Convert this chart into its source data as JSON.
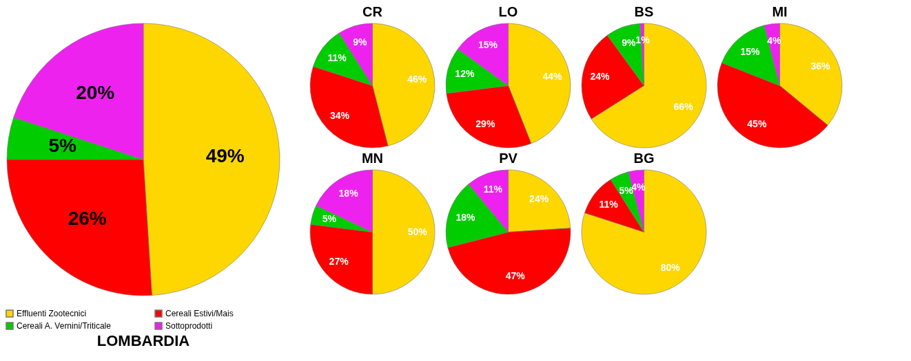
{
  "chart_data": [
    {
      "type": "pie",
      "title": "LOMBARDIA",
      "categories": [
        "Effluenti Zootecnici",
        "Cereali Estivi/Mais",
        "Cereali A. Vernini/Triticale",
        "Sottoprodotti"
      ],
      "values": [
        49,
        26,
        5,
        20
      ],
      "value_labels": [
        "49%",
        "26%",
        "5%",
        "20%"
      ],
      "colors": [
        "#ffd700",
        "#ff0000",
        "#00cc00",
        "#ee22ee"
      ],
      "legend": "bottom"
    },
    {
      "type": "pie",
      "title": "CR",
      "categories": [
        null,
        null,
        null,
        null
      ],
      "values": [
        46,
        34,
        11,
        9
      ],
      "value_labels": [
        "46%",
        "34%",
        "11%",
        "9%"
      ],
      "colors": [
        "#ffd700",
        "#ff0000",
        "#00cc00",
        "#ee22ee"
      ]
    },
    {
      "type": "pie",
      "title": "LO",
      "categories": [
        null,
        null,
        null,
        null
      ],
      "values": [
        44,
        29,
        12,
        15
      ],
      "value_labels": [
        "44%",
        "29%",
        "12%",
        "15%"
      ],
      "colors": [
        "#ffd700",
        "#ff0000",
        "#00cc00",
        "#ee22ee"
      ]
    },
    {
      "type": "pie",
      "title": "BS",
      "categories": [
        null,
        null,
        null,
        null
      ],
      "values": [
        66,
        24,
        9,
        1
      ],
      "value_labels": [
        "66%",
        "24%",
        "9%",
        "1%"
      ],
      "colors": [
        "#ffd700",
        "#ff0000",
        "#00cc00",
        "#ee22ee"
      ]
    },
    {
      "type": "pie",
      "title": "MI",
      "categories": [
        null,
        null,
        null,
        null
      ],
      "values": [
        36,
        45,
        15,
        4
      ],
      "value_labels": [
        "36%",
        "45%",
        "15%",
        "4%"
      ],
      "colors": [
        "#ffd700",
        "#ff0000",
        "#00cc00",
        "#ee22ee"
      ]
    },
    {
      "type": "pie",
      "title": "MN",
      "categories": [
        null,
        null,
        null,
        null
      ],
      "values": [
        50,
        27,
        5,
        18
      ],
      "value_labels": [
        "50%",
        "27%",
        "5%",
        "18%"
      ],
      "colors": [
        "#ffd700",
        "#ff0000",
        "#00cc00",
        "#ee22ee"
      ]
    },
    {
      "type": "pie",
      "title": "PV",
      "categories": [
        null,
        null,
        null,
        null
      ],
      "values": [
        24,
        47,
        18,
        11
      ],
      "value_labels": [
        "24%",
        "47%",
        "18%",
        "11%"
      ],
      "colors": [
        "#ffd700",
        "#ff0000",
        "#00cc00",
        "#ee22ee"
      ]
    },
    {
      "type": "pie",
      "title": "BG",
      "categories": [
        null,
        null,
        null,
        null
      ],
      "values": [
        80,
        11,
        5,
        4
      ],
      "value_labels": [
        "80%",
        "11%",
        "5%",
        "4%"
      ],
      "colors": [
        "#ffd700",
        "#ff0000",
        "#00cc00",
        "#ee22ee"
      ]
    }
  ]
}
